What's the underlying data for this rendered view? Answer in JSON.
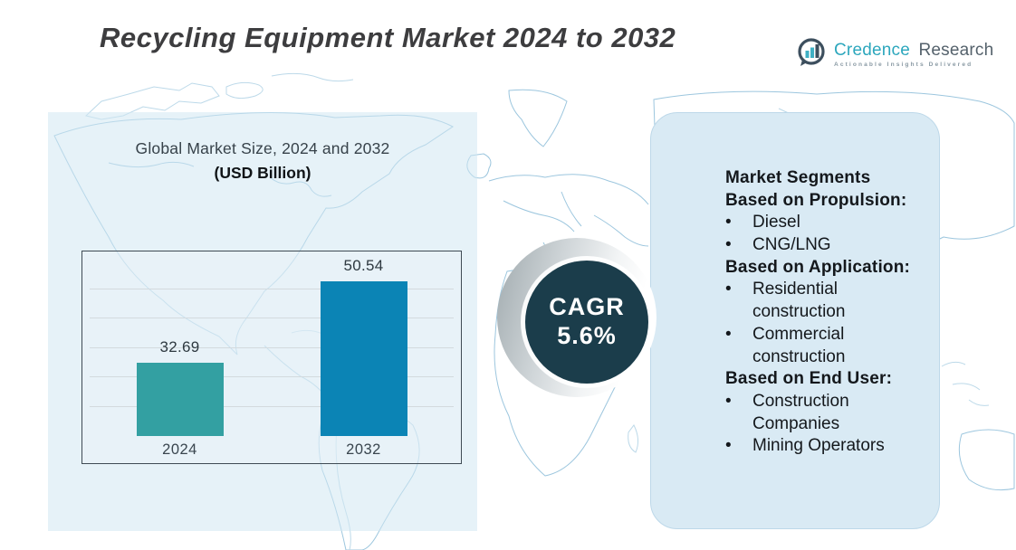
{
  "title": "Recycling Equipment Market 2024 to 2032",
  "logo": {
    "name_primary": "Credence",
    "name_secondary": "Research",
    "tagline": "Actionable Insights Delivered"
  },
  "chart_data": {
    "type": "bar",
    "title": "Global Market Size, 2024 and 2032",
    "subtitle": "(USD Billion)",
    "categories": [
      "2024",
      "2032"
    ],
    "values": [
      32.69,
      50.54
    ],
    "bar_colors": [
      "#33a0a2",
      "#0b84b5"
    ],
    "ylim": [
      16.5,
      57
    ],
    "grid": true,
    "gridline_count": 5,
    "legend": "none"
  },
  "cagr": {
    "label": "CAGR",
    "value": "5.6%",
    "bg_color": "#1b3d4b"
  },
  "panel": {
    "title": "Market Segments",
    "sections": [
      {
        "heading": "Based on Propulsion:",
        "items": [
          "Diesel",
          "CNG/LNG"
        ]
      },
      {
        "heading": "Based on Application:",
        "items": [
          "Residential construction",
          "Commercial construction"
        ]
      },
      {
        "heading": "Based on End User:",
        "items": [
          "Construction Companies",
          "Mining Operators"
        ]
      }
    ]
  },
  "colors": {
    "map_stroke": "#9cc6de",
    "card_fill": "#d2e7f3",
    "panel_fill": "#d9eaf4",
    "title_text": "#3d3d3f"
  }
}
